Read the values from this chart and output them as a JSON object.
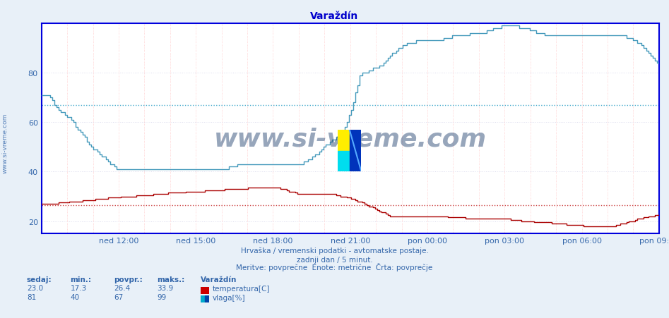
{
  "title": "Varaždín",
  "subtitle_lines": [
    "Hrvaška / vremenski podatki - avtomatske postaje.",
    "zadnji dan / 5 minut.",
    "Meritve: povprečne  Enote: metrične  Črta: povprečje"
  ],
  "figure_bg_color": "#e8f0f8",
  "plot_bg_color": "#ffffff",
  "axis_color": "#0000dd",
  "title_color": "#0000cc",
  "text_color": "#3366aa",
  "grid_h_color": "#ddddee",
  "grid_v_color": "#ffbbbb",
  "ylim": [
    15,
    100
  ],
  "yticks": [
    20,
    40,
    60,
    80
  ],
  "x_labels": [
    "ned 12:00",
    "ned 15:00",
    "ned 18:00",
    "ned 21:00",
    "pon 00:00",
    "pon 03:00",
    "pon 06:00",
    "pon 09:00"
  ],
  "temp_color": "#aa0000",
  "humidity_color": "#4499bb",
  "temp_avg": 26.4,
  "temp_min": 17.3,
  "temp_max": 33.9,
  "temp_current": 23.0,
  "hum_avg": 67,
  "hum_min": 40,
  "hum_max": 99,
  "hum_current": 81,
  "avg_line_temp_color": "#cc4444",
  "avg_line_hum_color": "#44aacc",
  "watermark": "www.si-vreme.com",
  "watermark_color": "#1a3a6a",
  "n_points": 288
}
